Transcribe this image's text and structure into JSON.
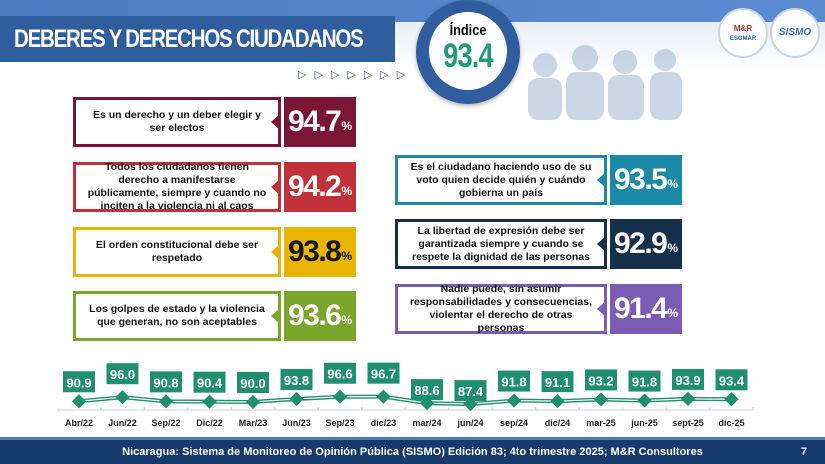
{
  "header": {
    "title": "DEBERES Y DERECHOS CIUDADANOS",
    "index_label": "Índice",
    "index_value": "93.4"
  },
  "logos": {
    "mr": "M&R Consultores ESOMAR member",
    "sismo": "SISMO"
  },
  "colors": {
    "maroon": "#7a1535",
    "red": "#c0313a",
    "yellow": "#e8b400",
    "green": "#7aa62a",
    "teal": "#1a8aa6",
    "navy": "#14304a",
    "purple": "#7a5cb5",
    "chart": "#1f8f70"
  },
  "left_cards": [
    {
      "text": "Es un derecho y un deber elegir y ser electos",
      "value": "94.7",
      "unit": "%"
    },
    {
      "text": "Todos los ciudadanos tienen derecho a manifestarse públicamente, siempre y cuando no inciten a la violencia ni al caos",
      "value": "94.2",
      "unit": "%"
    },
    {
      "text": "El orden constitucional debe ser respetado",
      "value": "93.8",
      "unit": "%"
    },
    {
      "text": "Los golpes de estado y la violencia que generan, no son aceptables",
      "value": "93.6",
      "unit": "%"
    }
  ],
  "right_cards": [
    {
      "text": "Es el ciudadano haciendo uso de su voto quien decide quién y cuándo gobierna un país",
      "value": "93.5",
      "unit": "%"
    },
    {
      "text": "La libertad de expresión debe ser garantizada siempre y cuando se respete la dignidad de las personas",
      "value": "92.9",
      "unit": "%"
    },
    {
      "text": "Nadie puede, sin asumir responsabilidades y consecuencias, violentar el derecho de otras personas",
      "value": "91.4",
      "unit": "%"
    }
  ],
  "chart_data": {
    "type": "line",
    "categories": [
      "Abr/22",
      "Jun/22",
      "Sep/22",
      "Dic/22",
      "Mar/23",
      "Jun/23",
      "Sep/23",
      "dic/23",
      "mar/24",
      "jun/24",
      "sep/24",
      "dic/24",
      "mar-25",
      "jun-25",
      "sept-25",
      "dic-25"
    ],
    "values": [
      90.9,
      96.0,
      90.8,
      90.4,
      90.0,
      93.8,
      96.6,
      96.7,
      88.6,
      87.4,
      91.8,
      91.1,
      93.2,
      91.8,
      93.9,
      93.4
    ],
    "labels": [
      "90.9",
      "96.0",
      "90.8",
      "90.4",
      "90.0",
      "93.8",
      "96.6",
      "96.7",
      "88.6",
      "87.4",
      "91.8",
      "91.1",
      "93.2",
      "91.8",
      "93.9",
      "93.4"
    ]
  },
  "footer": {
    "text": "Nicaragua: Sistema de Monitoreo de Opinión Pública (SISMO) Edición 83; 4to trimestre 2025; M&R Consultores",
    "page": "7"
  }
}
